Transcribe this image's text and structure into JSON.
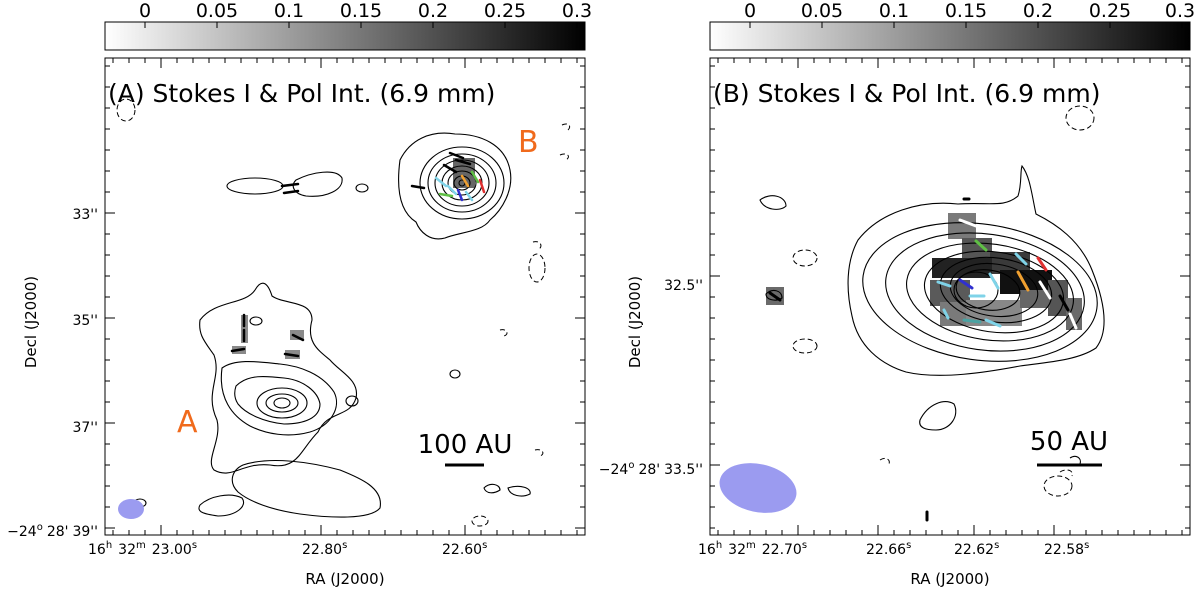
{
  "colors": {
    "beam": "#9b9bf0",
    "source_label": "#f06a1c",
    "pol_vectors": [
      "#000000",
      "#4aa3a3",
      "#7fd3e8",
      "#5fbf45",
      "#f0a030",
      "#e03030",
      "#3030d0",
      "#ffffff"
    ]
  },
  "chart_data": [
    {
      "type": "heatmap",
      "panel": "A",
      "title": "(A) Stokes I & Pol Int. (6.9 mm)",
      "colorbar": {
        "ticks": [
          "0",
          "0.05",
          "0.1",
          "0.15",
          "0.2",
          "0.25",
          "0.3"
        ],
        "range": [
          0,
          0.3
        ]
      },
      "xlabel": "RA (J2000)",
      "ylabel": "Decl (J2000)",
      "x_ticks": [
        {
          "h": "16",
          "m": "32",
          "s": "23.00",
          "sup_h": "h",
          "sup_m": "m",
          "sup_s": "s"
        },
        {
          "s": "22.80",
          "sup_s": "s"
        },
        {
          "s": "22.60",
          "sup_s": "s"
        }
      ],
      "y_ticks": [
        {
          "label": "33''"
        },
        {
          "label": "35''"
        },
        {
          "label": "37''"
        },
        {
          "deg": "−24",
          "min": "28'",
          "sec": "39''",
          "sup": "o"
        }
      ],
      "sources": [
        "A",
        "B"
      ],
      "scale_bar": "100 AU"
    },
    {
      "type": "heatmap",
      "panel": "B",
      "title": "(B) Stokes I & Pol Int. (6.9 mm)",
      "colorbar": {
        "ticks": [
          "0",
          "0.05",
          "0.1",
          "0.15",
          "0.2",
          "0.25",
          "0.3"
        ],
        "range": [
          0,
          0.3
        ]
      },
      "xlabel": "RA (J2000)",
      "ylabel": "Decl (J2000)",
      "x_ticks": [
        {
          "h": "16",
          "m": "32",
          "s": "22.70",
          "sup_h": "h",
          "sup_m": "m",
          "sup_s": "s"
        },
        {
          "s": "22.66",
          "sup_s": "s"
        },
        {
          "s": "22.62",
          "sup_s": "s"
        },
        {
          "s": "22.58",
          "sup_s": "s"
        }
      ],
      "y_ticks": [
        {
          "label": "32.5''"
        },
        {
          "deg": "−24",
          "min": "28'",
          "sec": "33.5''",
          "sup": "o"
        }
      ],
      "scale_bar": "50 AU"
    }
  ]
}
